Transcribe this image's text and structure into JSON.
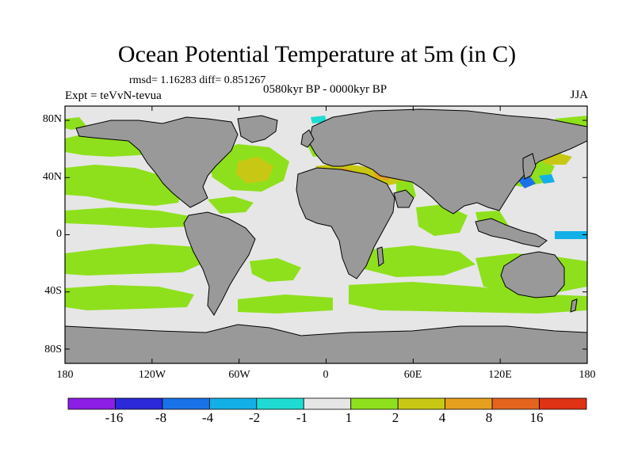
{
  "figure": {
    "title": "Ocean Potential Temperature at 5m (in C)",
    "stats": "rmsd= 1.16283 diff= 0.851267",
    "left_label": "Expt = teVvN-tevua",
    "center_label": "0580kyr BP - 0000kyr BP",
    "right_label": "JJA"
  },
  "chart_data": {
    "type": "heatmap",
    "map_projection": "cylindrical-equidistant",
    "xlim": [
      -180,
      180
    ],
    "ylim": [
      -90,
      90
    ],
    "x_tick_labels": [
      "180",
      "120W",
      "60W",
      "0",
      "60E",
      "120E",
      "180"
    ],
    "y_tick_labels": [
      "80N",
      "40N",
      "0",
      "40S",
      "80S"
    ],
    "colorbar": {
      "tick_labels": [
        "-16",
        "-8",
        "-4",
        "-2",
        "-1",
        "1",
        "2",
        "4",
        "8",
        "16"
      ],
      "bins": [
        {
          "range": "< -16",
          "color": "#8c1ee6"
        },
        {
          "range": "-16 to -8",
          "color": "#2a28d8"
        },
        {
          "range": "-8 to -4",
          "color": "#1a72e8"
        },
        {
          "range": "-4 to -2",
          "color": "#12b0e6"
        },
        {
          "range": "-2 to -1",
          "color": "#1edcd2"
        },
        {
          "range": "-1 to 1",
          "color": "#e6e6e6"
        },
        {
          "range": "1 to 2",
          "color": "#8ee01c"
        },
        {
          "range": "2 to 4",
          "color": "#c8c814"
        },
        {
          "range": "4 to 8",
          "color": "#e6a01e"
        },
        {
          "range": "8 to 16",
          "color": "#e4641e"
        },
        {
          "range": "> 16",
          "color": "#e03214"
        }
      ]
    },
    "land_color": "#999999",
    "background_color": "#e6e6e6"
  }
}
